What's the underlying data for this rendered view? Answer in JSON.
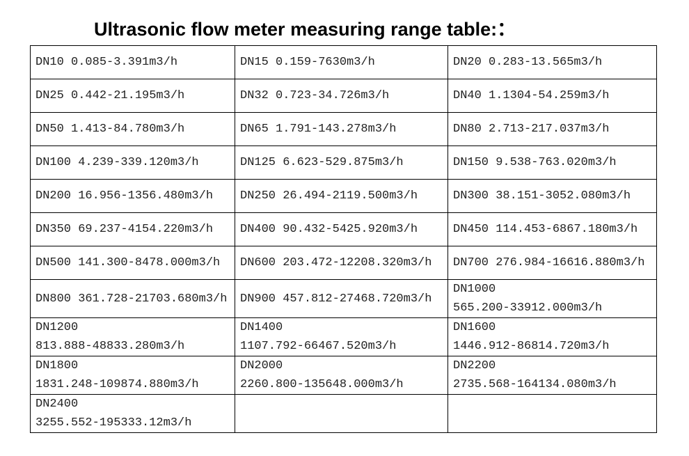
{
  "header": {
    "title": "Ultrasonic flow meter measuring range table:："
  },
  "table": {
    "rows": [
      [
        [
          "DN10 0.085-3.391m3/h"
        ],
        [
          "DN15 0.159-7630m3/h"
        ],
        [
          "DN20 0.283-13.565m3/h"
        ]
      ],
      [
        [
          "DN25 0.442-21.195m3/h"
        ],
        [
          "DN32 0.723-34.726m3/h"
        ],
        [
          "DN40 1.1304-54.259m3/h"
        ]
      ],
      [
        [
          "DN50 1.413-84.780m3/h"
        ],
        [
          "DN65 1.791-143.278m3/h"
        ],
        [
          "DN80 2.713-217.037m3/h"
        ]
      ],
      [
        [
          "DN100 4.239-339.120m3/h"
        ],
        [
          "DN125 6.623-529.875m3/h"
        ],
        [
          "DN150 9.538-763.020m3/h"
        ]
      ],
      [
        [
          "DN200 16.956-1356.480m3/h"
        ],
        [
          "DN250 26.494-2119.500m3/h"
        ],
        [
          "DN300 38.151-3052.080m3/h"
        ]
      ],
      [
        [
          "DN350 69.237-4154.220m3/h"
        ],
        [
          "DN400 90.432-5425.920m3/h"
        ],
        [
          "DN450 114.453-6867.180m3/h"
        ]
      ],
      [
        [
          "DN500 141.300-8478.000m3/h"
        ],
        [
          "DN600 203.472-12208.320m3/h"
        ],
        [
          "DN700 276.984-16616.880m3/h"
        ]
      ],
      [
        [
          "DN800 361.728-21703.680m3/h"
        ],
        [
          "DN900 457.812-27468.720m3/h"
        ],
        [
          "DN1000",
          "565.200-33912.000m3/h"
        ]
      ],
      [
        [
          "DN1200",
          "813.888-48833.280m3/h"
        ],
        [
          "DN1400",
          "1107.792-66467.520m3/h"
        ],
        [
          "DN1600",
          "1446.912-86814.720m3/h"
        ]
      ],
      [
        [
          "DN1800",
          "1831.248-109874.880m3/h"
        ],
        [
          "DN2000",
          "2260.800-135648.000m3/h"
        ],
        [
          "DN2200",
          "2735.568-164134.080m3/h"
        ]
      ],
      [
        [
          "DN2400",
          "3255.552-195333.12m3/h"
        ]
      ]
    ]
  }
}
